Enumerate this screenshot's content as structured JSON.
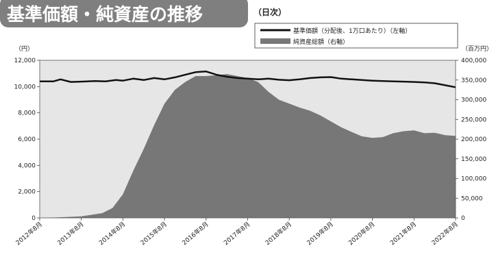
{
  "chart_data": {
    "type": "line+area",
    "title": "基準価額・純資産の推移",
    "frequency_note": "（日次）",
    "left_unit": "（円）",
    "right_unit": "（百万円）",
    "left_ylim": [
      0,
      12000
    ],
    "right_ylim": [
      0,
      400000
    ],
    "left_ticks": [
      "0",
      "2,000",
      "4,000",
      "6,000",
      "8,000",
      "10,000",
      "12,000"
    ],
    "right_ticks": [
      "0",
      "50,000",
      "100,000",
      "150,000",
      "200,000",
      "250,000",
      "300,000",
      "350,000",
      "400,000"
    ],
    "x_ticks": [
      "2012年8月",
      "2013年8月",
      "2014年8月",
      "2015年8月",
      "2016年8月",
      "2017年8月",
      "2018年8月",
      "2019年8月",
      "2020年8月",
      "2021年8月",
      "2022年8月"
    ],
    "x_range": [
      "2012-08",
      "2022-08"
    ],
    "grid": false,
    "legend_position": "top-right",
    "plot_background": "#e6e6e6",
    "series": [
      {
        "name": "基準価額（分配後、1万口あたり）（左軸）",
        "type": "line",
        "axis": "left",
        "color": "#111111",
        "points": [
          [
            "2012-08",
            10400
          ],
          [
            "2012-12",
            10400
          ],
          [
            "2013-02",
            10550
          ],
          [
            "2013-05",
            10350
          ],
          [
            "2013-08",
            10380
          ],
          [
            "2013-12",
            10420
          ],
          [
            "2014-03",
            10400
          ],
          [
            "2014-06",
            10500
          ],
          [
            "2014-08",
            10450
          ],
          [
            "2014-11",
            10600
          ],
          [
            "2015-02",
            10500
          ],
          [
            "2015-05",
            10650
          ],
          [
            "2015-08",
            10550
          ],
          [
            "2015-11",
            10700
          ],
          [
            "2016-02",
            10900
          ],
          [
            "2016-05",
            11100
          ],
          [
            "2016-08",
            11150
          ],
          [
            "2016-11",
            10900
          ],
          [
            "2017-02",
            10750
          ],
          [
            "2017-05",
            10650
          ],
          [
            "2017-08",
            10600
          ],
          [
            "2017-11",
            10550
          ],
          [
            "2018-02",
            10600
          ],
          [
            "2018-05",
            10520
          ],
          [
            "2018-08",
            10480
          ],
          [
            "2018-11",
            10550
          ],
          [
            "2019-02",
            10650
          ],
          [
            "2019-05",
            10700
          ],
          [
            "2019-08",
            10720
          ],
          [
            "2019-11",
            10600
          ],
          [
            "2020-02",
            10550
          ],
          [
            "2020-05",
            10500
          ],
          [
            "2020-08",
            10450
          ],
          [
            "2020-11",
            10420
          ],
          [
            "2021-02",
            10400
          ],
          [
            "2021-05",
            10380
          ],
          [
            "2021-08",
            10350
          ],
          [
            "2021-11",
            10320
          ],
          [
            "2022-02",
            10250
          ],
          [
            "2022-05",
            10100
          ],
          [
            "2022-08",
            9950
          ]
        ]
      },
      {
        "name": "純資産総額（右軸）",
        "type": "area",
        "axis": "right",
        "color": "#777777",
        "points": [
          [
            "2012-08",
            0
          ],
          [
            "2013-02",
            1500
          ],
          [
            "2013-08",
            4000
          ],
          [
            "2014-02",
            12000
          ],
          [
            "2014-05",
            25000
          ],
          [
            "2014-08",
            60000
          ],
          [
            "2014-11",
            120000
          ],
          [
            "2015-02",
            175000
          ],
          [
            "2015-05",
            235000
          ],
          [
            "2015-08",
            290000
          ],
          [
            "2015-11",
            325000
          ],
          [
            "2016-02",
            345000
          ],
          [
            "2016-05",
            360000
          ],
          [
            "2016-08",
            360000
          ],
          [
            "2016-11",
            362000
          ],
          [
            "2017-02",
            365000
          ],
          [
            "2017-05",
            360000
          ],
          [
            "2017-08",
            355000
          ],
          [
            "2017-11",
            345000
          ],
          [
            "2018-02",
            320000
          ],
          [
            "2018-05",
            300000
          ],
          [
            "2018-08",
            290000
          ],
          [
            "2018-11",
            280000
          ],
          [
            "2019-02",
            272000
          ],
          [
            "2019-05",
            260000
          ],
          [
            "2019-08",
            245000
          ],
          [
            "2019-11",
            230000
          ],
          [
            "2020-02",
            218000
          ],
          [
            "2020-05",
            207000
          ],
          [
            "2020-08",
            203000
          ],
          [
            "2020-11",
            205000
          ],
          [
            "2021-02",
            215000
          ],
          [
            "2021-05",
            220000
          ],
          [
            "2021-08",
            222000
          ],
          [
            "2021-11",
            215000
          ],
          [
            "2022-02",
            216000
          ],
          [
            "2022-05",
            210000
          ],
          [
            "2022-08",
            208000
          ]
        ]
      }
    ]
  }
}
